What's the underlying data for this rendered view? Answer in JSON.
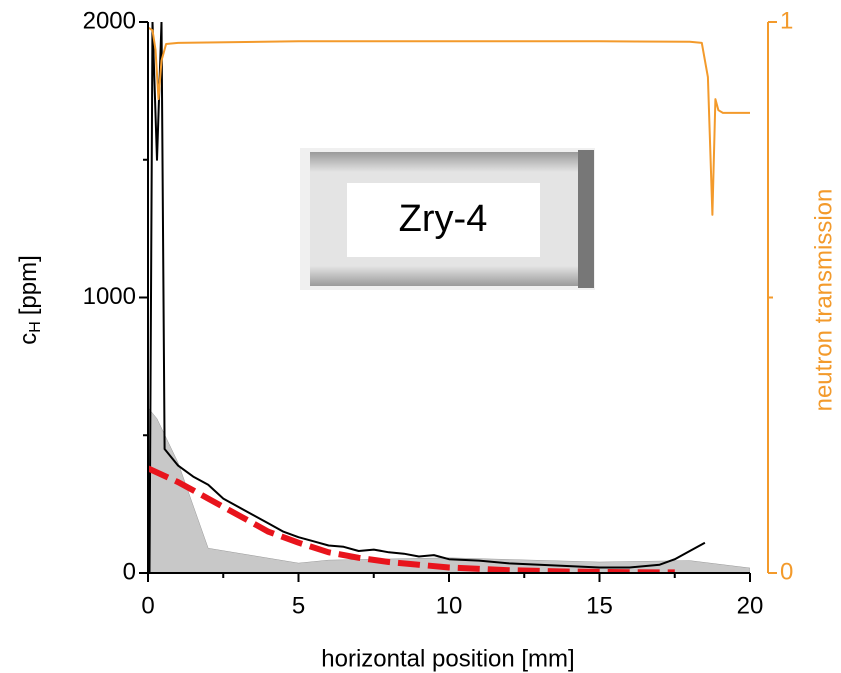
{
  "chart_data": {
    "type": "line",
    "xlabel": "horizontal position [mm]",
    "ylabel": "c",
    "ylabel_sub": "H",
    "ylabel_unit": "[ppm]",
    "y2label": "neutron transmission",
    "annotation": "Zry-4",
    "xlim": [
      0,
      20
    ],
    "xticks": [
      0,
      5,
      10,
      15,
      20
    ],
    "xminor": [
      2.5,
      7.5,
      12.5,
      17.5
    ],
    "ylim": [
      0,
      2000
    ],
    "yticks": [
      0,
      1000,
      2000
    ],
    "yminor": [
      500,
      1500
    ],
    "y2lim": [
      0,
      1
    ],
    "y2ticks": [
      0,
      1
    ],
    "y2minor": [
      0.5
    ],
    "y2color": "#f39a2b",
    "series": [
      {
        "style": "area",
        "color": "#c8c8c8",
        "x": [
          0,
          0.3,
          1,
          2,
          5,
          6,
          10,
          15,
          18,
          20
        ],
        "values": [
          600,
          560,
          400,
          90,
          36,
          47,
          55,
          40,
          45,
          18
        ]
      },
      {
        "style": "line",
        "color": "#000000",
        "x": [
          0.05,
          0.15,
          0.3,
          0.45,
          0.55,
          1,
          1.5,
          2,
          2.5,
          3,
          3.5,
          4,
          4.5,
          5,
          5.5,
          6,
          6.5,
          7,
          7.5,
          8,
          8.5,
          9,
          9.5,
          10,
          11,
          12,
          13,
          14,
          15,
          16,
          17,
          17.5,
          18,
          18.5
        ],
        "values": [
          0,
          2000,
          1500,
          2000,
          450,
          390,
          350,
          320,
          270,
          240,
          210,
          180,
          150,
          130,
          115,
          100,
          95,
          80,
          85,
          75,
          70,
          60,
          65,
          50,
          45,
          35,
          30,
          25,
          20,
          20,
          30,
          50,
          80,
          110
        ]
      },
      {
        "style": "dashed",
        "color": "#e8141c",
        "x": [
          0,
          1,
          2,
          3,
          4,
          5,
          6,
          7,
          8,
          10,
          12,
          14,
          16,
          17.5
        ],
        "values": [
          380,
          330,
          270,
          210,
          150,
          110,
          75,
          55,
          40,
          20,
          10,
          5,
          3,
          2
        ]
      },
      {
        "style": "line",
        "color": "#f39a2b",
        "axis": "y2",
        "x": [
          0,
          0.15,
          0.25,
          0.35,
          0.45,
          0.6,
          1,
          5,
          10,
          15,
          18,
          18.4,
          18.6,
          18.75,
          18.85,
          18.95,
          19.1,
          20
        ],
        "values": [
          0.99,
          0.985,
          0.95,
          0.86,
          0.93,
          0.96,
          0.962,
          0.965,
          0.965,
          0.965,
          0.964,
          0.962,
          0.9,
          0.65,
          0.86,
          0.84,
          0.835,
          0.835
        ]
      }
    ]
  }
}
